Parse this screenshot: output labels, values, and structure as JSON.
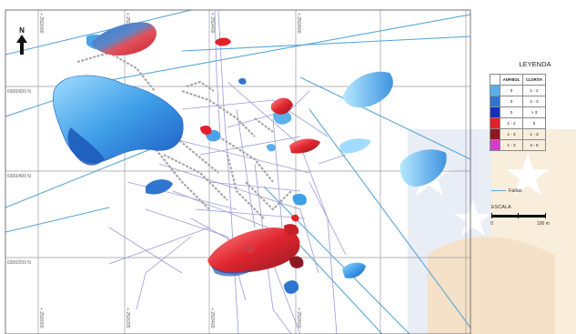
{
  "map": {
    "north_label": "N",
    "northing_labels": [
      "6300/600 N",
      "6300/400 N",
      "6300/200 N"
    ],
    "easting_labels_top": [
      "+ 250/000",
      "+ 250/200",
      "+ 250/400",
      "+ 250/600"
    ],
    "easting_labels_bottom": [
      "+ 250/000",
      "+ 250/200",
      "+ 250/400",
      "+ 250/600"
    ]
  },
  "legend": {
    "title": "LEYENDA",
    "headers": [
      "ANFIBOL",
      "CLORITA"
    ],
    "rows": [
      {
        "color": "#5bb0ea",
        "anfibol": "0",
        "clorita": "1 - 2"
      },
      {
        "color": "#2f74d0",
        "anfibol": "0",
        "clorita": "2 - 3"
      },
      {
        "color": "#1530b8",
        "anfibol": "0",
        "clorita": "> 3"
      },
      {
        "color": "#e2202a",
        "anfibol": "1 - 2",
        "clorita": "0"
      },
      {
        "color": "#8c1a24",
        "anfibol": "1 - 3",
        "clorita": "1 - 3"
      },
      {
        "color": "#d23dcb",
        "anfibol": "1 - 3",
        "clorita": "3 - 5"
      }
    ],
    "fallas_label": "Fallas",
    "escala_label": "ESCALA",
    "scale_start": "0",
    "scale_end": "100 m"
  }
}
